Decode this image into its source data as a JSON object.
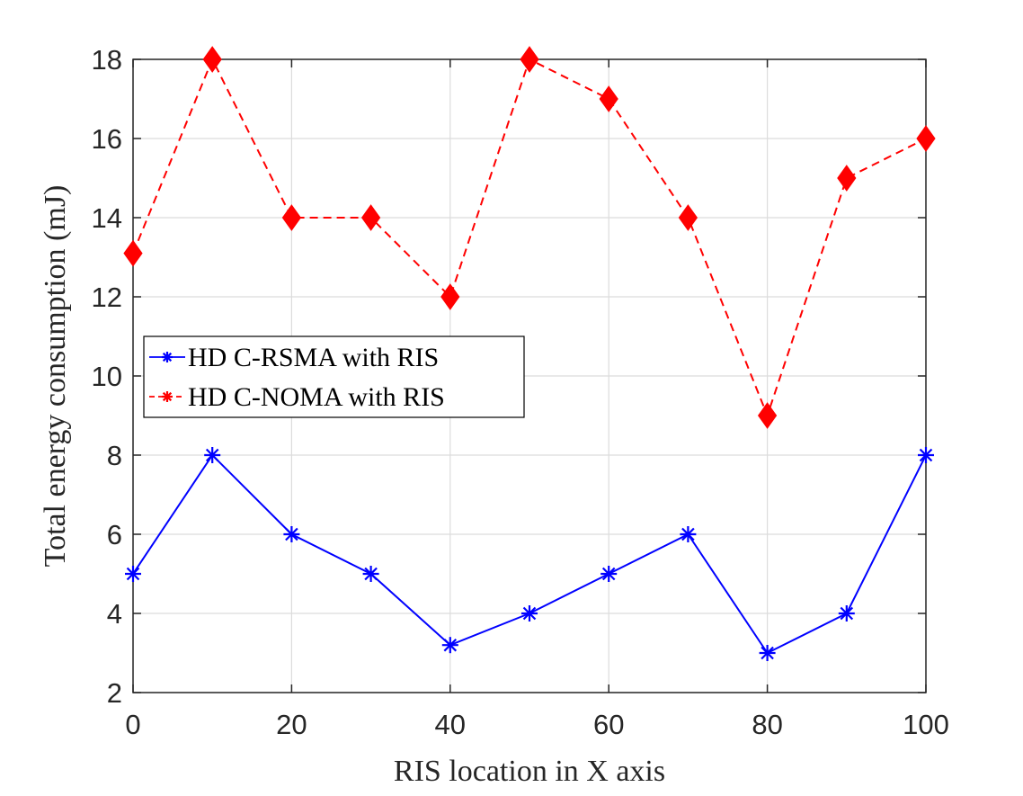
{
  "chart_data": {
    "type": "line",
    "title": "",
    "xlabel": "RIS location in X axis",
    "ylabel": "Total energy consumption (mJ)",
    "xlim": [
      0,
      100
    ],
    "ylim": [
      2,
      18
    ],
    "xticks": [
      0,
      20,
      40,
      60,
      80,
      100
    ],
    "yticks": [
      2,
      4,
      6,
      8,
      10,
      12,
      14,
      16,
      18
    ],
    "grid": true,
    "legend_position": "left-middle",
    "x": [
      0,
      10,
      20,
      30,
      40,
      50,
      60,
      70,
      80,
      90,
      100
    ],
    "series": [
      {
        "name": "HD C-RSMA with RIS",
        "color": "#0000ff",
        "line_style": "solid",
        "marker": "asterisk",
        "values": [
          5,
          8,
          6,
          5,
          3.2,
          4,
          5,
          6,
          3,
          4,
          8
        ]
      },
      {
        "name": "HD C-NOMA with RIS",
        "color": "#ff0000",
        "line_style": "dashed",
        "marker": "diamond",
        "legend_marker": "asterisk",
        "values": [
          13.1,
          18,
          14,
          14,
          12,
          18,
          17,
          14,
          9,
          15,
          16
        ]
      }
    ]
  }
}
